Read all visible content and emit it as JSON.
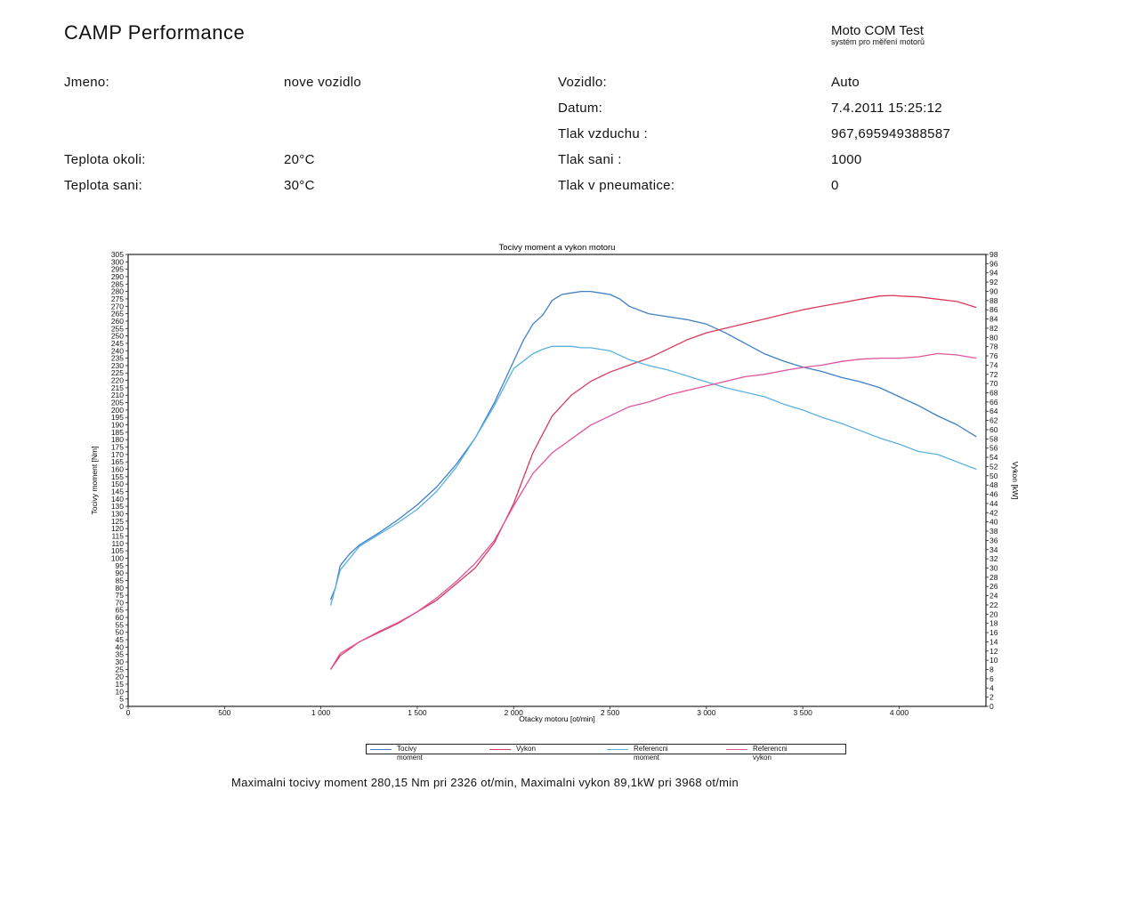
{
  "header": {
    "company": "CAMP Performance",
    "brand": "Moto COM Test",
    "brand_subtitle": "systém pro měření motorů"
  },
  "info": {
    "jmeno_label": "Jmeno:",
    "jmeno_value": "nove vozidlo",
    "teplota_okoli_label": "Teplota okoli:",
    "teplota_okoli_value": "20°C",
    "teplota_sani_label": "Teplota sani:",
    "teplota_sani_value": "30°C",
    "vozidlo_label": "Vozidlo:",
    "vozidlo_value": "Auto",
    "datum_label": "Datum:",
    "datum_value": "7.4.2011 15:25:12",
    "tlak_vzduchu_label": "Tlak vzduchu :",
    "tlak_vzduchu_value": "967,695949388587",
    "tlak_sani_label": "Tlak sani :",
    "tlak_sani_value": "1000",
    "tlak_pneu_label": "Tlak v pneumatice:",
    "tlak_pneu_value": "0"
  },
  "colors": {
    "moment": "#3f7fc6",
    "vykon": "#d83a5c",
    "ref_moment": "#5ab0e0",
    "ref_vykon": "#e0559a",
    "axis": "#222222"
  },
  "chart_data": {
    "type": "line",
    "title": "Tocivy moment a vykon motoru",
    "xlabel": "Otacky motoru [ot/min]",
    "ylabel_left": "Tocivy moment [Nm]",
    "ylabel_right": "Vykon [kW]",
    "xlim": [
      0,
      4450
    ],
    "ylim_left": [
      0,
      305
    ],
    "ylim_right": [
      0,
      98
    ],
    "x_ticks": [
      "0",
      "500",
      "1 000",
      "1 500",
      "2 000",
      "2 500",
      "3 000",
      "3 500",
      "4 000"
    ],
    "legend_position": "bottom",
    "series": [
      {
        "name": "Tocivy moment",
        "axis": "left",
        "x": [
          1050,
          1075,
          1100,
          1150,
          1200,
          1300,
          1400,
          1500,
          1600,
          1700,
          1800,
          1900,
          2000,
          2050,
          2100,
          2150,
          2200,
          2250,
          2300,
          2350,
          2400,
          2450,
          2500,
          2550,
          2600,
          2700,
          2800,
          2900,
          3000,
          3100,
          3200,
          3300,
          3400,
          3500,
          3600,
          3700,
          3800,
          3900,
          4000,
          4100,
          4200,
          4300,
          4400
        ],
        "y": [
          72,
          80,
          95,
          103,
          109,
          117,
          126,
          136,
          148,
          163,
          181,
          205,
          233,
          247,
          258,
          264,
          274,
          278,
          279,
          280,
          280,
          279,
          278,
          275,
          270,
          265,
          263,
          261,
          258,
          252,
          245,
          238,
          233,
          229,
          226,
          222,
          219,
          215,
          209,
          203,
          196,
          190,
          182
        ]
      },
      {
        "name": "Vykon",
        "axis": "right",
        "x": [
          1050,
          1100,
          1200,
          1300,
          1400,
          1500,
          1600,
          1700,
          1800,
          1900,
          2000,
          2100,
          2200,
          2300,
          2400,
          2500,
          2600,
          2700,
          2800,
          2900,
          3000,
          3100,
          3200,
          3300,
          3400,
          3500,
          3600,
          3700,
          3800,
          3900,
          3968,
          4000,
          4100,
          4200,
          4300,
          4400
        ],
        "y": [
          8,
          11,
          14,
          16,
          18,
          20.5,
          23,
          26.5,
          30,
          35.5,
          44,
          55,
          63,
          67.5,
          70.5,
          72.5,
          74,
          75.5,
          77.5,
          79.5,
          81,
          82,
          83,
          84,
          85,
          86,
          86.8,
          87.5,
          88.3,
          89,
          89.1,
          89,
          88.8,
          88.3,
          87.8,
          86.5
        ]
      },
      {
        "name": "Referencni moment",
        "axis": "left",
        "x": [
          1050,
          1100,
          1200,
          1300,
          1400,
          1500,
          1600,
          1700,
          1800,
          1900,
          2000,
          2100,
          2150,
          2200,
          2250,
          2300,
          2350,
          2400,
          2450,
          2500,
          2600,
          2700,
          2800,
          2900,
          3000,
          3100,
          3200,
          3300,
          3400,
          3500,
          3600,
          3700,
          3800,
          3900,
          4000,
          4100,
          4200,
          4300,
          4400
        ],
        "y": [
          68,
          92,
          108,
          116,
          124,
          133,
          145,
          161,
          181,
          203,
          228,
          238,
          241,
          243,
          243,
          243,
          242,
          242,
          241,
          240,
          234,
          230,
          227,
          223,
          219,
          215,
          212,
          209,
          204,
          200,
          195,
          191,
          186,
          181,
          177,
          172,
          170,
          165,
          160
        ]
      },
      {
        "name": "Referencni vykon",
        "axis": "right",
        "x": [
          1050,
          1100,
          1200,
          1300,
          1400,
          1500,
          1600,
          1700,
          1800,
          1900,
          2000,
          2100,
          2200,
          2300,
          2400,
          2500,
          2600,
          2700,
          2800,
          2900,
          3000,
          3100,
          3200,
          3300,
          3400,
          3500,
          3600,
          3700,
          3800,
          3900,
          4000,
          4100,
          4200,
          4300,
          4400
        ],
        "y": [
          8,
          11.5,
          14,
          16.2,
          18.2,
          20.5,
          23.5,
          27,
          31,
          36,
          43.5,
          50.5,
          55,
          58,
          61,
          63,
          65,
          66,
          67.5,
          68.5,
          69.5,
          70.5,
          71.5,
          72,
          72.8,
          73.5,
          74,
          74.8,
          75.3,
          75.5,
          75.5,
          75.8,
          76.5,
          76.2,
          75.5
        ]
      }
    ]
  },
  "summary": "Maximalni tocivy moment 280,15 Nm pri 2326 ot/min,  Maximalni vykon 89,1kW pri 3968 ot/min"
}
